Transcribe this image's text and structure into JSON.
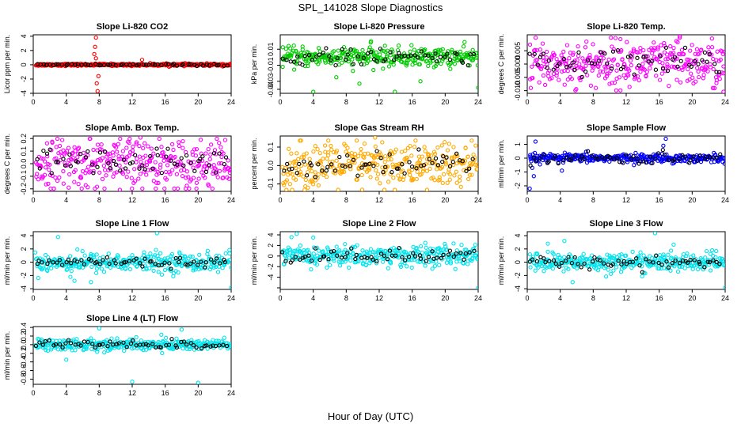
{
  "figure": {
    "title": "SPL_141028  Slope Diagnostics",
    "xlabel": "Hour of Day (UTC)"
  },
  "chart_data": [
    {
      "type": "scatter",
      "title": "Slope Li-820 CO2",
      "ylabel": "Licor ppm per min.",
      "color": "#ff0000",
      "xlim": [
        0,
        24
      ],
      "ylim": [
        -4,
        4.2
      ],
      "xticks": [
        0,
        4,
        8,
        12,
        16,
        20,
        24
      ],
      "yticks": [
        -4,
        -2,
        0,
        2,
        4
      ],
      "ytick_labels": [
        "-4",
        "-2",
        "0",
        "2",
        "4"
      ],
      "spread": 0.08,
      "black_spread": 0.12,
      "outliers": [
        [
          7.6,
          3.8
        ],
        [
          7.8,
          -3.7
        ],
        [
          7.5,
          2.5
        ],
        [
          7.7,
          -2.6
        ],
        [
          7.4,
          1.5
        ],
        [
          7.9,
          -1.6
        ],
        [
          13.2,
          0.7
        ],
        [
          7.6,
          0.9
        ]
      ]
    },
    {
      "type": "scatter",
      "title": "Slope Li-820 Pressure",
      "ylabel": "kPa per min.",
      "color": "#00cc00",
      "xlim": [
        0,
        24
      ],
      "ylim": [
        -0.045,
        0.028
      ],
      "xticks": [
        0,
        4,
        8,
        12,
        16,
        20,
        24
      ],
      "yticks": [
        -0.04,
        -0.03,
        -0.01,
        0.01
      ],
      "ytick_labels": [
        "-0.04",
        "-0.03",
        "-0.01",
        "0.01"
      ],
      "spread": 0.006,
      "black_spread": 0.008,
      "outliers": [
        [
          4,
          -0.043
        ],
        [
          6.8,
          -0.025
        ],
        [
          9.6,
          -0.033
        ],
        [
          13.9,
          -0.043
        ],
        [
          17,
          -0.03
        ],
        [
          24,
          -0.038
        ],
        [
          0.3,
          -0.012
        ],
        [
          11,
          0.02
        ]
      ]
    },
    {
      "type": "scatter",
      "title": "Slope Li-820 Temp.",
      "ylabel": "degrees C per min.",
      "color": "#ff00ff",
      "xlim": [
        0,
        24
      ],
      "ylim": [
        -0.011,
        0.011
      ],
      "xticks": [
        0,
        4,
        8,
        12,
        16,
        20,
        24
      ],
      "yticks": [
        -0.01,
        -0.005,
        0,
        0.005
      ],
      "ytick_labels": [
        "-0.010",
        "-0.005",
        "0.000",
        "0.005"
      ],
      "spread": 0.0045,
      "black_spread": 0.0045,
      "outliers": [
        [
          18.5,
          0.0105
        ],
        [
          23.8,
          -0.0105
        ],
        [
          22.5,
          -0.009
        ]
      ]
    },
    {
      "type": "scatter",
      "title": "Slope Amb. Box Temp.",
      "ylabel": "degrees C per min.",
      "color": "#ff00ff",
      "xlim": [
        0,
        24
      ],
      "ylim": [
        -0.22,
        0.22
      ],
      "xticks": [
        0,
        4,
        8,
        12,
        16,
        20,
        24
      ],
      "yticks": [
        -0.2,
        -0.1,
        0,
        0.1,
        0.2
      ],
      "ytick_labels": [
        "-0.2",
        "-0.1",
        "0.0",
        "0.1",
        "0.2"
      ],
      "spread": 0.1,
      "black_spread": 0.1,
      "outliers": [
        [
          13,
          0.21
        ],
        [
          10.5,
          -0.21
        ]
      ]
    },
    {
      "type": "scatter",
      "title": "Slope Gas Stream RH",
      "ylabel": "percent per min.",
      "color": "#ffaa00",
      "xlim": [
        0,
        24
      ],
      "ylim": [
        -0.14,
        0.16
      ],
      "xticks": [
        0,
        4,
        8,
        12,
        16,
        20,
        24
      ],
      "yticks": [
        -0.1,
        0,
        0.1
      ],
      "ytick_labels": [
        "-0.1",
        "0.0",
        "0.1"
      ],
      "spread": 0.065,
      "black_spread": 0.06,
      "outliers": [
        [
          11.5,
          0.16
        ]
      ]
    },
    {
      "type": "scatter",
      "title": "Slope Sample Flow",
      "ylabel": "ml/min per min.",
      "color": "#0000ff",
      "xlim": [
        0,
        24
      ],
      "ylim": [
        -2.4,
        1.6
      ],
      "xticks": [
        0,
        4,
        8,
        12,
        16,
        20,
        24
      ],
      "yticks": [
        -2,
        -1,
        0,
        1
      ],
      "ytick_labels": [
        "-2",
        "-1",
        "0",
        "1"
      ],
      "spread": 0.15,
      "black_spread": 0.35,
      "outliers": [
        [
          0.3,
          -2.2
        ],
        [
          0.8,
          -1.3
        ],
        [
          1,
          1.2
        ],
        [
          0.6,
          -0.7
        ],
        [
          16.8,
          1.4
        ],
        [
          16.5,
          0.9
        ],
        [
          4.2,
          -0.9
        ]
      ]
    },
    {
      "type": "scatter",
      "title": "Slope Line 1 Flow",
      "ylabel": "ml/min per min.",
      "color": "#00e5ee",
      "xlim": [
        0,
        24
      ],
      "ylim": [
        -4.1,
        4.6
      ],
      "xticks": [
        0,
        4,
        8,
        12,
        16,
        20,
        24
      ],
      "yticks": [
        -4,
        -2,
        0,
        2,
        4
      ],
      "ytick_labels": [
        "-4",
        "-2",
        "0",
        "2",
        "4"
      ],
      "spread": 0.7,
      "black_spread": 0.6,
      "outliers": [
        [
          15,
          4.5
        ],
        [
          3,
          3.8
        ],
        [
          5,
          -2.8
        ],
        [
          24,
          -3.8
        ],
        [
          7,
          -3
        ],
        [
          4.5,
          -2.2
        ]
      ]
    },
    {
      "type": "scatter",
      "title": "Slope Line 2 Flow",
      "ylabel": "ml/min per min.",
      "color": "#00e5ee",
      "xlim": [
        0,
        24
      ],
      "ylim": [
        -6.3,
        4.6
      ],
      "xticks": [
        0,
        4,
        8,
        12,
        16,
        20,
        24
      ],
      "yticks": [
        -6,
        -4,
        -2,
        0,
        2,
        4
      ],
      "ytick_labels": [
        "",
        "-4",
        "-2",
        "0",
        "2",
        "4"
      ],
      "spread": 1.0,
      "black_spread": 1.1,
      "outliers": [
        [
          24,
          -6
        ],
        [
          2,
          4.2
        ],
        [
          4,
          3.5
        ]
      ]
    },
    {
      "type": "scatter",
      "title": "Slope Line 3 Flow",
      "ylabel": "ml/min per min.",
      "color": "#00e5ee",
      "xlim": [
        0,
        24
      ],
      "ylim": [
        -4.1,
        4.6
      ],
      "xticks": [
        0,
        4,
        8,
        12,
        16,
        20,
        24
      ],
      "yticks": [
        -4,
        -2,
        0,
        2,
        4
      ],
      "ytick_labels": [
        "-4",
        "-2",
        "0",
        "2",
        "4"
      ],
      "spread": 0.7,
      "black_spread": 0.8,
      "outliers": [
        [
          15.5,
          4.4
        ],
        [
          24,
          -3.8
        ],
        [
          5.5,
          -3
        ],
        [
          4.5,
          3.2
        ],
        [
          2.5,
          2.8
        ]
      ]
    },
    {
      "type": "scatter",
      "title": "Slope Line 4 (LT) Flow",
      "ylabel": "ml/min per min.",
      "color": "#00e5ee",
      "xlim": [
        0,
        24
      ],
      "ylim": [
        -0.92,
        0.42
      ],
      "xticks": [
        0,
        4,
        8,
        12,
        16,
        20,
        24
      ],
      "yticks": [
        -0.8,
        -0.6,
        -0.4,
        -0.2,
        0,
        0.2,
        0.4
      ],
      "ytick_labels": [
        "-0.8",
        "-0.6",
        "-0.4",
        "-0.2",
        "0.0",
        "0.2",
        "0.4"
      ],
      "spread": 0.07,
      "black_spread": 0.09,
      "outliers": [
        [
          12,
          -0.86
        ],
        [
          20,
          -0.9
        ],
        [
          4,
          -0.35
        ],
        [
          8,
          0.38
        ],
        [
          18,
          0.35
        ]
      ]
    }
  ]
}
